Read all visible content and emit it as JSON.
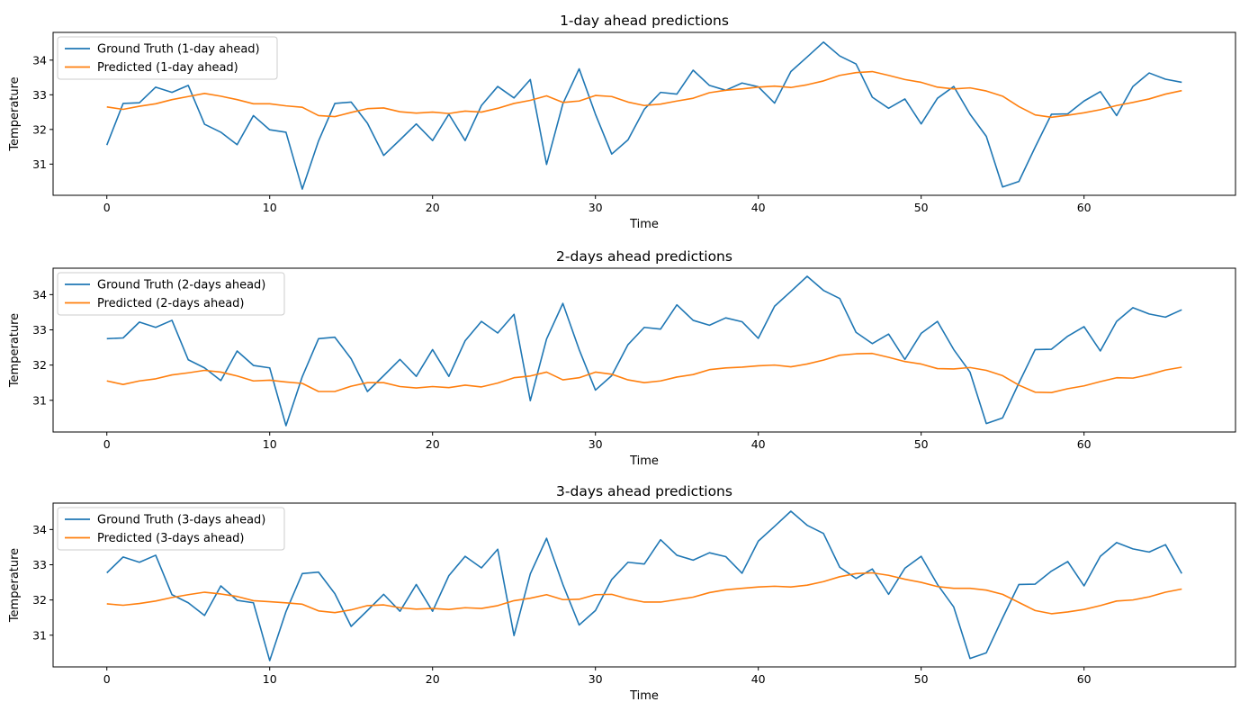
{
  "chart_data": [
    {
      "type": "line",
      "title": "1-day ahead predictions",
      "xlabel": "Time",
      "ylabel": "Temperature",
      "xlim": [
        -3.3,
        69.3
      ],
      "ylim": [
        30.1,
        34.8
      ],
      "xticks": [
        0,
        10,
        20,
        30,
        40,
        50,
        60
      ],
      "yticks": [
        31,
        32,
        33,
        34
      ],
      "grid": false,
      "legend_position": "upper-left",
      "series": [
        {
          "name": "Ground Truth (1-day ahead)",
          "color": "#1f77b4",
          "values": [
            31.55,
            32.75,
            32.77,
            33.22,
            33.07,
            33.27,
            32.15,
            31.92,
            31.56,
            32.4,
            31.99,
            31.92,
            30.28,
            31.67,
            32.75,
            32.79,
            32.18,
            31.25,
            31.7,
            32.16,
            31.68,
            32.44,
            31.68,
            32.69,
            33.24,
            32.91,
            33.44,
            30.99,
            32.74,
            33.75,
            32.44,
            31.29,
            31.7,
            32.58,
            33.07,
            33.02,
            33.71,
            33.27,
            33.13,
            33.34,
            33.23,
            32.76,
            33.67,
            34.09,
            34.52,
            34.12,
            33.89,
            32.93,
            32.61,
            32.88,
            32.16,
            32.9,
            33.24,
            32.44,
            31.8,
            30.34,
            30.5,
            31.49,
            32.44,
            32.45,
            32.82,
            33.09,
            32.4,
            33.24,
            33.63,
            33.45,
            33.36
          ]
        },
        {
          "name": "Predicted (1-day ahead)",
          "color": "#ff7f0e",
          "values": [
            32.65,
            32.58,
            32.67,
            32.74,
            32.86,
            32.95,
            33.04,
            32.96,
            32.86,
            32.74,
            32.74,
            32.68,
            32.64,
            32.4,
            32.37,
            32.49,
            32.6,
            32.62,
            32.51,
            32.47,
            32.5,
            32.46,
            32.53,
            32.5,
            32.61,
            32.75,
            32.84,
            32.97,
            32.78,
            32.82,
            32.98,
            32.95,
            32.79,
            32.69,
            32.73,
            32.82,
            32.9,
            33.06,
            33.13,
            33.17,
            33.22,
            33.25,
            33.21,
            33.29,
            33.4,
            33.56,
            33.64,
            33.67,
            33.56,
            33.44,
            33.36,
            33.22,
            33.17,
            33.2,
            33.11,
            32.96,
            32.66,
            32.42,
            32.35,
            32.41,
            32.48,
            32.57,
            32.69,
            32.78,
            32.88,
            33.02,
            33.12
          ]
        }
      ]
    },
    {
      "type": "line",
      "title": "2-days ahead predictions",
      "xlabel": "Time",
      "ylabel": "Temperature",
      "xlim": [
        -3.3,
        69.3
      ],
      "ylim": [
        30.1,
        34.75
      ],
      "xticks": [
        0,
        10,
        20,
        30,
        40,
        50,
        60
      ],
      "yticks": [
        31,
        32,
        33,
        34
      ],
      "grid": false,
      "legend_position": "upper-left",
      "series": [
        {
          "name": "Ground Truth (2-days ahead)",
          "color": "#1f77b4",
          "values": [
            32.75,
            32.77,
            33.22,
            33.07,
            33.27,
            32.15,
            31.92,
            31.56,
            32.4,
            31.99,
            31.92,
            30.28,
            31.67,
            32.75,
            32.79,
            32.18,
            31.25,
            31.7,
            32.16,
            31.68,
            32.44,
            31.68,
            32.69,
            33.24,
            32.91,
            33.44,
            30.99,
            32.74,
            33.75,
            32.44,
            31.29,
            31.7,
            32.58,
            33.07,
            33.02,
            33.71,
            33.27,
            33.13,
            33.34,
            33.23,
            32.76,
            33.67,
            34.09,
            34.52,
            34.12,
            33.89,
            32.93,
            32.61,
            32.88,
            32.16,
            32.9,
            33.24,
            32.44,
            31.8,
            30.34,
            30.5,
            31.49,
            32.44,
            32.45,
            32.82,
            33.09,
            32.4,
            33.24,
            33.63,
            33.45,
            33.36,
            33.57
          ]
        },
        {
          "name": "Predicted (2-days ahead)",
          "color": "#ff7f0e",
          "values": [
            31.55,
            31.45,
            31.55,
            31.61,
            31.72,
            31.78,
            31.85,
            31.8,
            31.69,
            31.55,
            31.57,
            31.52,
            31.48,
            31.25,
            31.25,
            31.4,
            31.5,
            31.5,
            31.39,
            31.35,
            31.39,
            31.36,
            31.43,
            31.38,
            31.49,
            31.64,
            31.69,
            31.8,
            31.58,
            31.64,
            31.8,
            31.74,
            31.58,
            31.5,
            31.55,
            31.66,
            31.73,
            31.87,
            31.92,
            31.94,
            31.98,
            32.0,
            31.95,
            32.03,
            32.14,
            32.28,
            32.32,
            32.33,
            32.22,
            32.1,
            32.03,
            31.9,
            31.89,
            31.93,
            31.85,
            31.7,
            31.43,
            31.23,
            31.22,
            31.33,
            31.41,
            31.53,
            31.64,
            31.63,
            31.73,
            31.86,
            31.94
          ]
        }
      ]
    },
    {
      "type": "line",
      "title": "3-days ahead predictions",
      "xlabel": "Time",
      "ylabel": "Temperature",
      "xlim": [
        -3.3,
        69.3
      ],
      "ylim": [
        30.1,
        34.75
      ],
      "xticks": [
        0,
        10,
        20,
        30,
        40,
        50,
        60
      ],
      "yticks": [
        31,
        32,
        33,
        34
      ],
      "grid": false,
      "legend_position": "upper-left",
      "series": [
        {
          "name": "Ground Truth (3-days ahead)",
          "color": "#1f77b4",
          "values": [
            32.77,
            33.22,
            33.07,
            33.27,
            32.15,
            31.92,
            31.56,
            32.4,
            31.99,
            31.92,
            30.28,
            31.67,
            32.75,
            32.79,
            32.18,
            31.25,
            31.7,
            32.16,
            31.68,
            32.44,
            31.68,
            32.69,
            33.24,
            32.91,
            33.44,
            30.99,
            32.74,
            33.75,
            32.44,
            31.29,
            31.7,
            32.58,
            33.07,
            33.02,
            33.71,
            33.27,
            33.13,
            33.34,
            33.23,
            32.76,
            33.67,
            34.09,
            34.52,
            34.12,
            33.89,
            32.93,
            32.61,
            32.88,
            32.16,
            32.9,
            33.24,
            32.44,
            31.8,
            30.34,
            30.5,
            31.49,
            32.44,
            32.45,
            32.82,
            33.09,
            32.4,
            33.24,
            33.63,
            33.45,
            33.36,
            33.57,
            32.75
          ]
        },
        {
          "name": "Predicted (3-days ahead)",
          "color": "#ff7f0e",
          "values": [
            31.89,
            31.85,
            31.9,
            31.97,
            32.07,
            32.15,
            32.22,
            32.17,
            32.1,
            31.98,
            31.95,
            31.92,
            31.88,
            31.69,
            31.64,
            31.72,
            31.84,
            31.86,
            31.78,
            31.74,
            31.76,
            31.73,
            31.78,
            31.76,
            31.84,
            31.98,
            32.05,
            32.15,
            32.01,
            32.02,
            32.15,
            32.16,
            32.03,
            31.94,
            31.94,
            32.01,
            32.08,
            32.21,
            32.29,
            32.33,
            32.37,
            32.39,
            32.37,
            32.42,
            32.52,
            32.66,
            32.75,
            32.77,
            32.7,
            32.59,
            32.5,
            32.38,
            32.33,
            32.33,
            32.28,
            32.16,
            31.93,
            31.7,
            31.61,
            31.66,
            31.73,
            31.84,
            31.97,
            32.0,
            32.09,
            32.22,
            32.31
          ]
        }
      ]
    }
  ]
}
